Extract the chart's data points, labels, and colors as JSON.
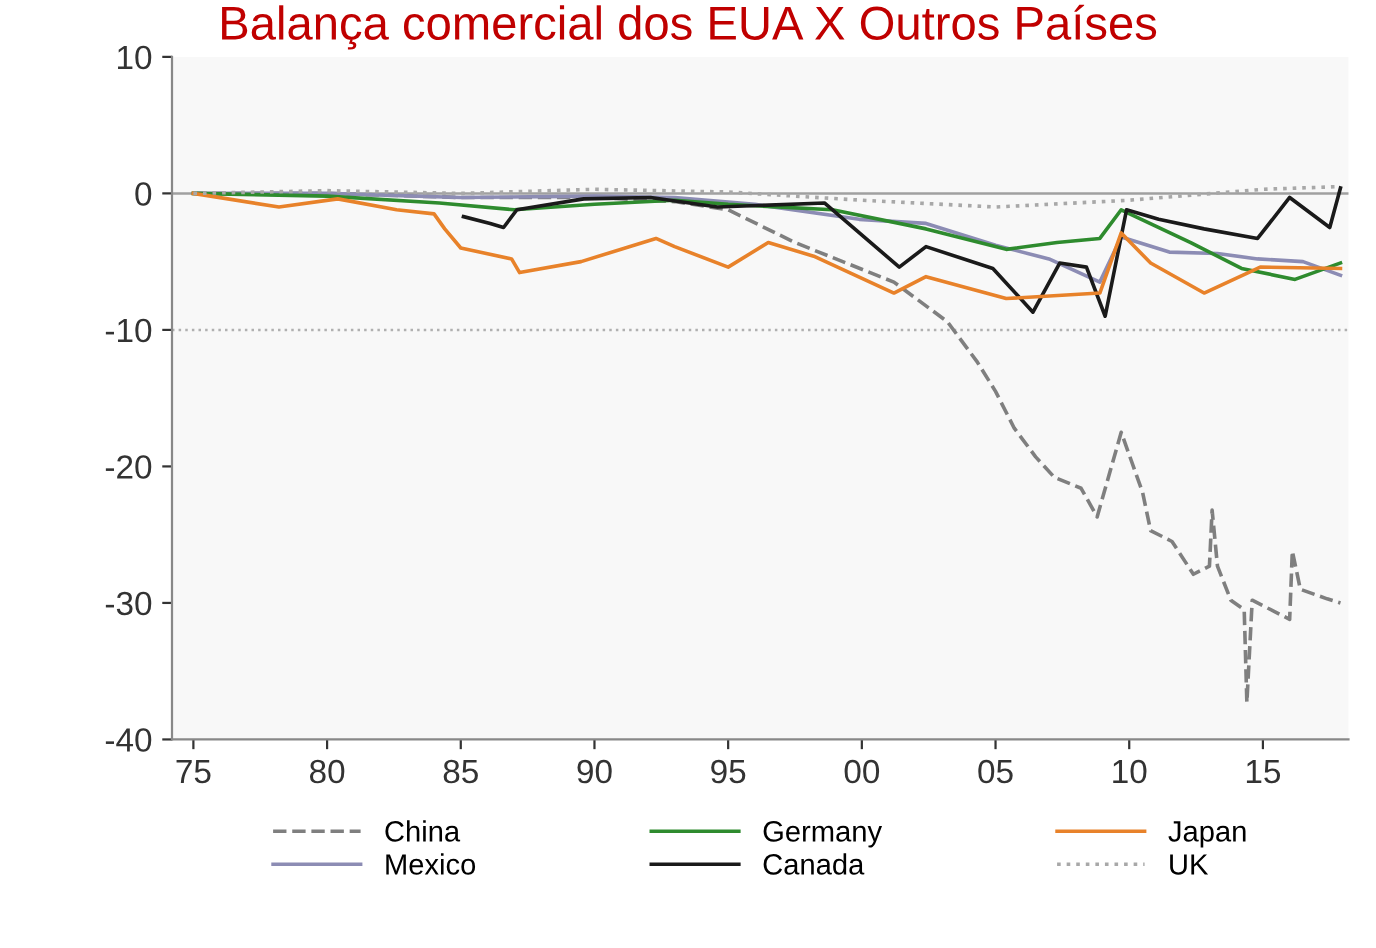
{
  "chart_data": {
    "type": "line",
    "title": "Balança comercial dos EUA X Outros Países",
    "xlim": [
      1974.2,
      2018.2
    ],
    "ylim": [
      -40,
      10
    ],
    "xticks": [
      {
        "value": 1975,
        "label": "75"
      },
      {
        "value": 1980,
        "label": "80"
      },
      {
        "value": 1985,
        "label": "85"
      },
      {
        "value": 1990,
        "label": "90"
      },
      {
        "value": 1995,
        "label": "95"
      },
      {
        "value": 2000,
        "label": "00"
      },
      {
        "value": 2005,
        "label": "05"
      },
      {
        "value": 2010,
        "label": "10"
      },
      {
        "value": 2015,
        "label": "15"
      }
    ],
    "yticks": [
      -40,
      -30,
      -20,
      -10,
      0,
      10
    ],
    "ref_lines": [
      {
        "axis": "y",
        "value": 0,
        "label": null,
        "color": "#a0a0a0",
        "line_style": "solid"
      },
      {
        "axis": "y",
        "value": -10,
        "label": null,
        "color": "#b0b0b0",
        "line_style": "dotted"
      }
    ],
    "legend": "bottom",
    "grid": false,
    "marker": "none",
    "series": [
      {
        "name": "China",
        "color": "#7f7f7f",
        "line_style": "dashed",
        "x": [
          1975,
          1980,
          1985,
          1990,
          1993,
          1995,
          1997.5,
          2001.2,
          2003.2,
          2004.3,
          2005.0,
          2005.7,
          2006.5,
          2007.2,
          2008.2,
          2008.8,
          2009.7,
          2010.5,
          2010.8,
          2011.6,
          2012.4,
          2013.0,
          2013.1,
          2013.3,
          2013.8,
          2014.3,
          2014.4,
          2014.6,
          2016.0,
          2016.1,
          2016.4,
          2017.4,
          2017.9
        ],
        "values": [
          0,
          0,
          -0.3,
          -0.3,
          -0.6,
          -1.2,
          -3.6,
          -6.5,
          -9.4,
          -12.3,
          -14.5,
          -17.2,
          -19.3,
          -20.8,
          -21.6,
          -23.7,
          -17.5,
          -21.9,
          -24.7,
          -25.5,
          -27.9,
          -27.3,
          -23.2,
          -27.3,
          -29.8,
          -30.5,
          -37.3,
          -29.8,
          -31.2,
          -26.2,
          -29,
          -29.7,
          -30
        ]
      },
      {
        "name": "Mexico",
        "color": "#8c8cb4",
        "line_style": "solid",
        "x": [
          1975,
          1980,
          1985,
          1990,
          1993,
          1996,
          1999.9,
          2002.4,
          2005,
          2007,
          2008.9,
          2009.7,
          2011.5,
          2013.3,
          2014.8,
          2016.5,
          2017.9
        ],
        "values": [
          0,
          0,
          -0.3,
          -0.2,
          -0.3,
          -0.8,
          -1.9,
          -2.2,
          -3.8,
          -4.8,
          -6.5,
          -3.2,
          -4.3,
          -4.4,
          -4.8,
          -5.0,
          -6.0
        ]
      },
      {
        "name": "Germany",
        "color": "#2e8b2e",
        "line_style": "solid",
        "x": [
          1975,
          1980,
          1984.2,
          1987,
          1990,
          1993,
          1995,
          1998.9,
          2002.4,
          2005.4,
          2007.3,
          2008.9,
          2009.7,
          2012.3,
          2014.2,
          2016.2,
          2017.9
        ],
        "values": [
          0,
          -0.2,
          -0.7,
          -1.2,
          -0.8,
          -0.5,
          -0.8,
          -1.2,
          -2.6,
          -4.1,
          -3.6,
          -3.3,
          -1.2,
          -3.6,
          -5.5,
          -6.3,
          -5.1
        ]
      },
      {
        "name": "Canada",
        "color": "#1a1a1a",
        "line_style": "solid",
        "x": [
          1985.1,
          1986.1,
          1986.6,
          1987.1,
          1989.6,
          1992.1,
          1994.6,
          1998.6,
          2001.4,
          2002.4,
          2004.9,
          2006.4,
          2007.4,
          2008.4,
          2009.1,
          2009.9,
          2011.1,
          2012.8,
          2014.8,
          2016.0,
          2017.5,
          2017.9
        ],
        "values": [
          -1.7,
          -2.2,
          -2.5,
          -1.2,
          -0.4,
          -0.3,
          -1.0,
          -0.7,
          -5.4,
          -3.9,
          -5.5,
          -8.7,
          -5.1,
          -5.4,
          -9.0,
          -1.2,
          -1.9,
          -2.6,
          -3.3,
          -0.3,
          -2.5,
          0.4
        ]
      },
      {
        "name": "Japan",
        "color": "#e8822a",
        "line_style": "solid",
        "x": [
          1975,
          1978.2,
          1980.4,
          1982.6,
          1984.0,
          1984.4,
          1985.0,
          1986.9,
          1987.2,
          1989.5,
          1992.3,
          1993.0,
          1995.0,
          1996.5,
          1998.2,
          2001.2,
          2002.4,
          2005.4,
          2008.9,
          2009.7,
          2010.8,
          2012.8,
          2014.9,
          2017.9
        ],
        "values": [
          0,
          -1.0,
          -0.4,
          -1.2,
          -1.5,
          -2.6,
          -4.0,
          -4.8,
          -5.8,
          -5.0,
          -3.3,
          -3.9,
          -5.4,
          -3.6,
          -4.6,
          -7.3,
          -6.1,
          -7.7,
          -7.3,
          -2.9,
          -5.1,
          -7.3,
          -5.4,
          -5.5
        ]
      },
      {
        "name": "UK",
        "color": "#a8a8a8",
        "line_style": "dotted",
        "x": [
          1975,
          1980,
          1985,
          1990,
          1995,
          2000,
          2005,
          2010,
          2015,
          2017.9
        ],
        "values": [
          0,
          0.2,
          0,
          0.3,
          0.1,
          -0.5,
          -1.0,
          -0.5,
          0.3,
          0.5
        ]
      }
    ]
  }
}
